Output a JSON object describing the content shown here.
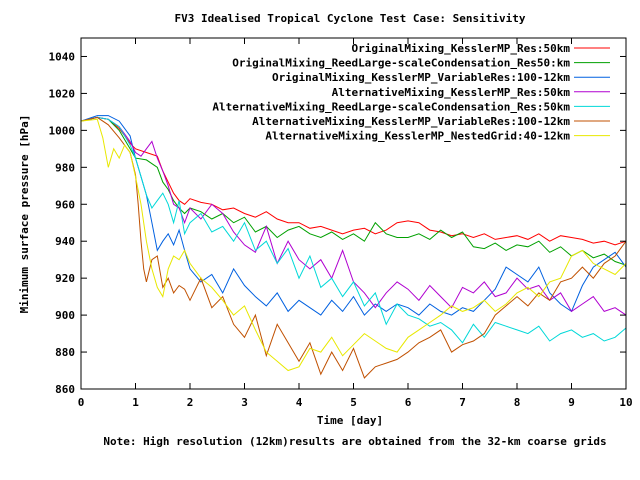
{
  "chart_data": {
    "type": "line",
    "title": "FV3 Idealised Tropical Cyclone Test Case: Sensitivity",
    "xlabel": "Time [day]",
    "ylabel": "Minimum surface pressure [hPa]",
    "footnote": "Note: High resolution (12km)results are obtained from the 32-km coarse grids",
    "xlim": [
      0,
      10
    ],
    "ylim": [
      860,
      1050
    ],
    "xticks": [
      0,
      1,
      2,
      3,
      4,
      5,
      6,
      7,
      8,
      9,
      10
    ],
    "yticks": [
      860,
      880,
      900,
      920,
      940,
      960,
      980,
      1000,
      1020,
      1040
    ],
    "grid": false,
    "legend_position": "top-right",
    "series": [
      {
        "name": "OriginalMixing_KesslerMP_Res:50km",
        "color": "#ff0000",
        "x": [
          0,
          0.3,
          0.5,
          0.7,
          0.9,
          1.0,
          1.2,
          1.4,
          1.5,
          1.6,
          1.7,
          1.8,
          1.9,
          2.0,
          2.2,
          2.4,
          2.6,
          2.8,
          3.0,
          3.2,
          3.4,
          3.6,
          3.8,
          4.0,
          4.2,
          4.4,
          4.6,
          4.8,
          5.0,
          5.2,
          5.4,
          5.6,
          5.8,
          6.0,
          6.2,
          6.4,
          6.6,
          6.8,
          7.0,
          7.2,
          7.4,
          7.6,
          7.8,
          8.0,
          8.2,
          8.4,
          8.6,
          8.8,
          9.0,
          9.2,
          9.4,
          9.6,
          9.8,
          10.0
        ],
        "y": [
          1005,
          1007,
          1006,
          1001,
          993,
          990,
          988,
          986,
          978,
          972,
          966,
          962,
          960,
          963,
          961,
          960,
          957,
          958,
          955,
          953,
          956,
          952,
          950,
          950,
          947,
          948,
          946,
          944,
          946,
          947,
          944,
          946,
          950,
          951,
          950,
          946,
          945,
          943,
          944,
          942,
          944,
          941,
          942,
          943,
          941,
          944,
          940,
          943,
          942,
          941,
          939,
          940,
          938,
          940
        ]
      },
      {
        "name": "OriginalMixing_ReedLarge-scaleCondensation_Res50:km",
        "color": "#00a000",
        "x": [
          0,
          0.3,
          0.5,
          0.7,
          0.9,
          1.0,
          1.2,
          1.4,
          1.5,
          1.6,
          1.7,
          1.8,
          1.9,
          2.0,
          2.2,
          2.4,
          2.6,
          2.8,
          3.0,
          3.2,
          3.4,
          3.6,
          3.8,
          4.0,
          4.2,
          4.4,
          4.6,
          4.8,
          5.0,
          5.2,
          5.4,
          5.6,
          5.8,
          6.0,
          6.2,
          6.4,
          6.6,
          6.8,
          7.0,
          7.2,
          7.4,
          7.6,
          7.8,
          8.0,
          8.2,
          8.4,
          8.6,
          8.8,
          9.0,
          9.2,
          9.4,
          9.6,
          9.8,
          10.0
        ],
        "y": [
          1005,
          1007,
          1006,
          1000,
          990,
          985,
          984,
          980,
          972,
          968,
          962,
          958,
          955,
          958,
          956,
          952,
          955,
          950,
          953,
          945,
          948,
          942,
          946,
          948,
          944,
          942,
          945,
          941,
          944,
          940,
          950,
          944,
          942,
          942,
          944,
          941,
          946,
          942,
          945,
          937,
          936,
          939,
          935,
          938,
          937,
          940,
          934,
          937,
          932,
          935,
          931,
          933,
          929,
          927
        ]
      },
      {
        "name": "OriginalMixing_KesslerMP_VariableRes:100-12km",
        "color": "#0060e0",
        "x": [
          0,
          0.3,
          0.5,
          0.7,
          0.9,
          1.0,
          1.1,
          1.2,
          1.3,
          1.4,
          1.5,
          1.6,
          1.7,
          1.8,
          1.9,
          2.0,
          2.2,
          2.4,
          2.6,
          2.8,
          3.0,
          3.2,
          3.4,
          3.6,
          3.8,
          4.0,
          4.2,
          4.4,
          4.6,
          4.8,
          5.0,
          5.2,
          5.4,
          5.6,
          5.8,
          6.0,
          6.2,
          6.4,
          6.6,
          6.8,
          7.0,
          7.2,
          7.4,
          7.6,
          7.8,
          8.0,
          8.2,
          8.4,
          8.6,
          8.8,
          9.0,
          9.2,
          9.4,
          9.6,
          9.8,
          10.0
        ],
        "y": [
          1005,
          1008,
          1008,
          1005,
          997,
          985,
          975,
          965,
          950,
          935,
          940,
          944,
          938,
          946,
          935,
          925,
          918,
          922,
          912,
          925,
          916,
          910,
          905,
          912,
          902,
          908,
          904,
          900,
          908,
          902,
          910,
          900,
          906,
          902,
          906,
          904,
          900,
          906,
          902,
          900,
          904,
          902,
          908,
          914,
          926,
          922,
          918,
          926,
          912,
          906,
          902,
          916,
          926,
          930,
          934,
          926
        ]
      },
      {
        "name": "AlternativeMixing_KesslerMP_Res:50km",
        "color": "#b000d0",
        "x": [
          0,
          0.3,
          0.5,
          0.7,
          0.9,
          1.0,
          1.1,
          1.2,
          1.3,
          1.4,
          1.5,
          1.6,
          1.7,
          1.8,
          1.9,
          2.0,
          2.2,
          2.4,
          2.6,
          2.8,
          3.0,
          3.2,
          3.4,
          3.6,
          3.8,
          4.0,
          4.2,
          4.4,
          4.6,
          4.8,
          5.0,
          5.2,
          5.4,
          5.6,
          5.8,
          6.0,
          6.2,
          6.4,
          6.6,
          6.8,
          7.0,
          7.2,
          7.4,
          7.6,
          7.8,
          8.0,
          8.2,
          8.4,
          8.6,
          8.8,
          9.0,
          9.2,
          9.4,
          9.6,
          9.8,
          10.0
        ],
        "y": [
          1005,
          1007,
          1006,
          1002,
          994,
          988,
          986,
          990,
          994,
          985,
          978,
          970,
          960,
          958,
          950,
          958,
          952,
          960,
          955,
          945,
          938,
          934,
          948,
          928,
          940,
          930,
          925,
          930,
          920,
          935,
          918,
          912,
          904,
          912,
          918,
          914,
          908,
          916,
          910,
          904,
          915,
          912,
          918,
          910,
          912,
          920,
          914,
          916,
          908,
          912,
          902,
          906,
          910,
          902,
          904,
          900
        ]
      },
      {
        "name": "AlternativeMixing_ReedLarge-scaleCondensation_Res:50km",
        "color": "#00d8d8",
        "x": [
          0,
          0.3,
          0.5,
          0.7,
          0.9,
          1.0,
          1.1,
          1.2,
          1.3,
          1.4,
          1.5,
          1.6,
          1.7,
          1.8,
          1.9,
          2.0,
          2.2,
          2.4,
          2.6,
          2.8,
          3.0,
          3.2,
          3.4,
          3.6,
          3.8,
          4.0,
          4.2,
          4.4,
          4.6,
          4.8,
          5.0,
          5.2,
          5.4,
          5.6,
          5.8,
          6.0,
          6.2,
          6.4,
          6.6,
          6.8,
          7.0,
          7.2,
          7.4,
          7.6,
          7.8,
          8.0,
          8.2,
          8.4,
          8.6,
          8.8,
          9.0,
          9.2,
          9.4,
          9.6,
          9.8,
          10.0
        ],
        "y": [
          1005,
          1007,
          1006,
          1002,
          992,
          985,
          975,
          965,
          958,
          962,
          966,
          960,
          950,
          962,
          944,
          950,
          955,
          945,
          948,
          940,
          950,
          935,
          940,
          928,
          936,
          920,
          932,
          915,
          920,
          910,
          918,
          905,
          912,
          895,
          906,
          900,
          898,
          894,
          896,
          892,
          885,
          895,
          888,
          896,
          894,
          892,
          890,
          894,
          886,
          890,
          892,
          888,
          890,
          886,
          888,
          893
        ]
      },
      {
        "name": "AlternativeMixing_KesslerMP_VariableRes:100-12km",
        "color": "#c05000",
        "x": [
          0,
          0.3,
          0.5,
          0.7,
          0.9,
          1.0,
          1.05,
          1.1,
          1.15,
          1.2,
          1.3,
          1.4,
          1.5,
          1.6,
          1.7,
          1.8,
          1.9,
          2.0,
          2.2,
          2.4,
          2.6,
          2.8,
          3.0,
          3.2,
          3.4,
          3.6,
          3.8,
          4.0,
          4.2,
          4.4,
          4.6,
          4.8,
          5.0,
          5.2,
          5.4,
          5.6,
          5.8,
          6.0,
          6.2,
          6.4,
          6.6,
          6.8,
          7.0,
          7.2,
          7.4,
          7.6,
          7.8,
          8.0,
          8.2,
          8.4,
          8.6,
          8.8,
          9.0,
          9.2,
          9.4,
          9.6,
          9.8,
          10.0
        ],
        "y": [
          1005,
          1007,
          1003,
          996,
          988,
          976,
          960,
          940,
          925,
          918,
          930,
          932,
          915,
          920,
          912,
          916,
          914,
          908,
          920,
          904,
          910,
          895,
          888,
          900,
          878,
          895,
          885,
          875,
          885,
          868,
          880,
          870,
          882,
          866,
          872,
          874,
          876,
          880,
          885,
          888,
          892,
          880,
          884,
          886,
          890,
          900,
          905,
          910,
          905,
          912,
          908,
          918,
          920,
          926,
          920,
          928,
          932,
          940
        ]
      },
      {
        "name": "AlternativeMixing_KesslerMP_NestedGrid:40-12km",
        "color": "#e8e800",
        "x": [
          0,
          0.3,
          0.4,
          0.5,
          0.6,
          0.7,
          0.8,
          0.9,
          1.0,
          1.1,
          1.2,
          1.3,
          1.4,
          1.5,
          1.6,
          1.7,
          1.8,
          1.9,
          2.0,
          2.2,
          2.4,
          2.6,
          2.8,
          3.0,
          3.2,
          3.4,
          3.6,
          3.8,
          4.0,
          4.2,
          4.4,
          4.6,
          4.8,
          5.0,
          5.2,
          5.4,
          5.6,
          5.8,
          6.0,
          6.2,
          6.4,
          6.6,
          6.8,
          7.0,
          7.2,
          7.4,
          7.6,
          7.8,
          8.0,
          8.2,
          8.4,
          8.6,
          8.8,
          9.0,
          9.2,
          9.4,
          9.6,
          9.8,
          10.0
        ],
        "y": [
          1005,
          1006,
          996,
          980,
          990,
          985,
          992,
          988,
          975,
          960,
          940,
          925,
          915,
          910,
          925,
          932,
          930,
          935,
          928,
          920,
          915,
          908,
          900,
          905,
          892,
          880,
          875,
          870,
          872,
          882,
          880,
          888,
          878,
          884,
          890,
          886,
          882,
          880,
          888,
          892,
          896,
          900,
          905,
          902,
          904,
          908,
          902,
          906,
          912,
          915,
          910,
          918,
          920,
          932,
          935,
          928,
          925,
          922,
          928
        ]
      }
    ]
  }
}
